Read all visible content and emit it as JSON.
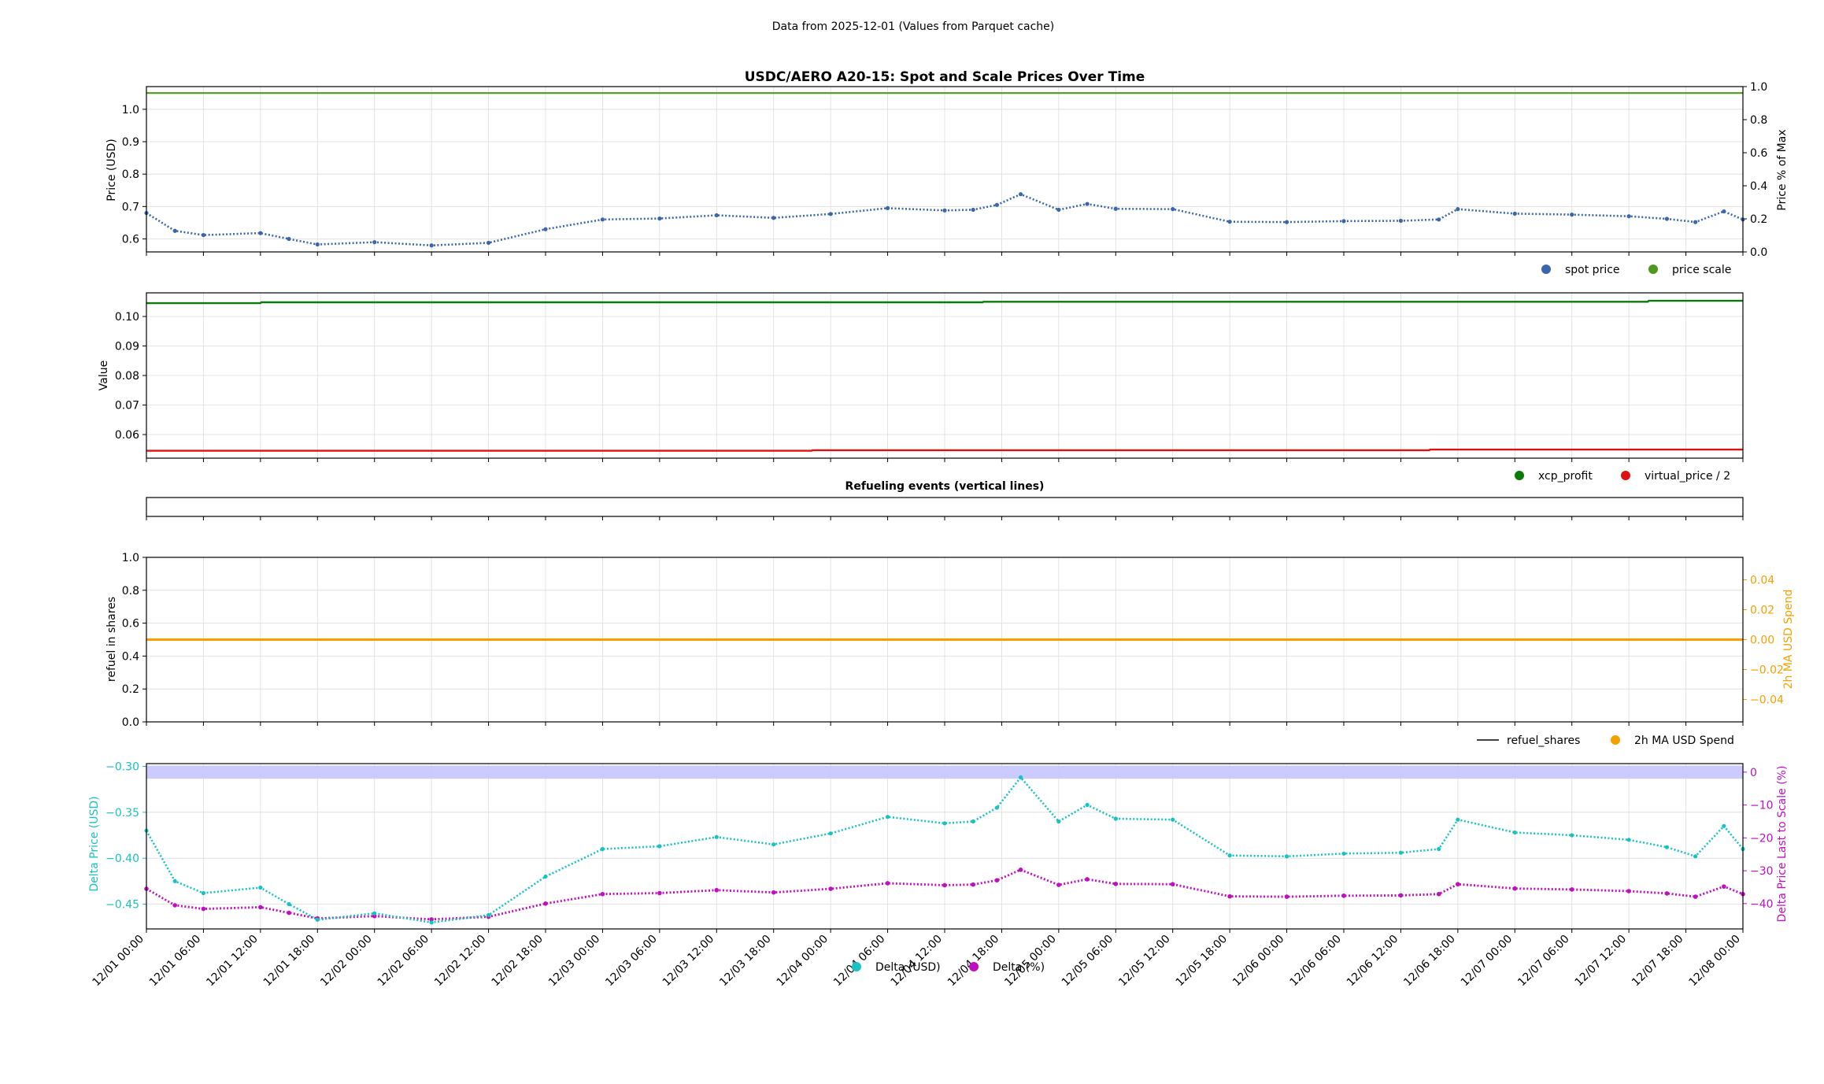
{
  "figure": {
    "suptitle": "Data from 2025-12-01 (Values from Parquet cache)"
  },
  "x_axis": {
    "start": "2025-12-01T00:00",
    "end": "2025-12-08T00:00",
    "tick_labels": [
      "12/01 00:00",
      "12/01 06:00",
      "12/01 12:00",
      "12/01 18:00",
      "12/02 00:00",
      "12/02 06:00",
      "12/02 12:00",
      "12/02 18:00",
      "12/03 00:00",
      "12/03 06:00",
      "12/03 12:00",
      "12/03 18:00",
      "12/04 00:00",
      "12/04 06:00",
      "12/04 12:00",
      "12/04 18:00",
      "12/05 00:00",
      "12/05 06:00",
      "12/05 12:00",
      "12/05 18:00",
      "12/06 00:00",
      "12/06 06:00",
      "12/06 12:00",
      "12/06 18:00",
      "12/07 00:00",
      "12/07 06:00",
      "12/07 12:00",
      "12/07 18:00",
      "12/08 00:00"
    ]
  },
  "colors": {
    "spot": "#3a66ad",
    "scale": "#4f9a1e",
    "xcp": "#0a7a0a",
    "virtual": "#e01010",
    "orange": "#f5a000",
    "cyan": "#19c2c2",
    "magenta": "#bf10bf",
    "band": "#c8c8ff",
    "grid": "#dcdcdc"
  },
  "chart_data": [
    {
      "type": "line",
      "title": "USDC/AERO A20-15: Spot and Scale Prices Over Time",
      "ylabel": "Price (USD)",
      "y2label": "Price % of Max",
      "ylim": [
        0.56,
        1.07
      ],
      "yticks": [
        "0.6",
        "0.7",
        "0.8",
        "0.9",
        "1.0"
      ],
      "y2lim": [
        0.0,
        1.0
      ],
      "y2ticks": [
        "0.0",
        "0.2",
        "0.4",
        "0.6",
        "0.8",
        "1.0"
      ],
      "grid": true,
      "legend_placement": "below-right",
      "series": [
        {
          "name": "spot price",
          "axis": "left",
          "x": [
            "12/01 00:00",
            "12/01 03:00",
            "12/01 06:00",
            "12/01 12:00",
            "12/01 15:00",
            "12/01 18:00",
            "12/02 00:00",
            "12/02 06:00",
            "12/02 12:00",
            "12/02 18:00",
            "12/03 00:00",
            "12/03 06:00",
            "12/03 12:00",
            "12/03 18:00",
            "12/04 00:00",
            "12/04 06:00",
            "12/04 12:00",
            "12/04 15:00",
            "12/04 17:30",
            "12/04 20:00",
            "12/05 00:00",
            "12/05 03:00",
            "12/05 06:00",
            "12/05 12:00",
            "12/05 18:00",
            "12/06 00:00",
            "12/06 06:00",
            "12/06 12:00",
            "12/06 16:00",
            "12/06 18:00",
            "12/07 00:00",
            "12/07 06:00",
            "12/07 12:00",
            "12/07 16:00",
            "12/07 19:00",
            "12/07 22:00",
            "12/08 00:00"
          ],
          "values": [
            0.68,
            0.625,
            0.612,
            0.618,
            0.6,
            0.583,
            0.59,
            0.58,
            0.588,
            0.63,
            0.66,
            0.663,
            0.673,
            0.665,
            0.677,
            0.695,
            0.688,
            0.69,
            0.705,
            0.738,
            0.69,
            0.708,
            0.693,
            0.692,
            0.653,
            0.652,
            0.655,
            0.656,
            0.66,
            0.692,
            0.678,
            0.675,
            0.67,
            0.662,
            0.652,
            0.685,
            0.66
          ]
        },
        {
          "name": "price scale",
          "axis": "left",
          "x": [
            "12/01 00:00",
            "12/08 00:00"
          ],
          "values": [
            1.05,
            1.05
          ]
        }
      ]
    },
    {
      "type": "line",
      "ylabel": "Value",
      "ylim": [
        0.052,
        0.108
      ],
      "yticks": [
        "0.06",
        "0.07",
        "0.08",
        "0.09",
        "0.10"
      ],
      "grid": true,
      "legend_placement": "below-right",
      "series": [
        {
          "name": "xcp_profit",
          "x": [
            "12/01 00:00",
            "12/01 12:00",
            "12/01 12:05",
            "12/04 16:00",
            "12/04 16:05",
            "12/07 14:00",
            "12/07 14:05",
            "12/08 00:00"
          ],
          "values": [
            0.1045,
            0.1045,
            0.1048,
            0.1048,
            0.105,
            0.105,
            0.1053,
            0.1053
          ]
        },
        {
          "name": "virtual_price / 2",
          "x": [
            "12/01 00:00",
            "12/03 22:00",
            "12/03 22:05",
            "12/06 15:00",
            "12/06 15:05",
            "12/08 00:00"
          ],
          "values": [
            0.0545,
            0.0545,
            0.0547,
            0.0547,
            0.0549,
            0.0549
          ]
        }
      ]
    },
    {
      "type": "line",
      "title": "Refueling events (vertical lines)",
      "series": []
    },
    {
      "type": "line",
      "ylabel": "refuel in shares",
      "y2label": "2h MA USD Spend",
      "ylim": [
        0.0,
        1.0
      ],
      "yticks": [
        "0.0",
        "0.2",
        "0.4",
        "0.6",
        "0.8",
        "1.0"
      ],
      "y2lim": [
        -0.055,
        0.055
      ],
      "y2ticks": [
        "−0.04",
        "−0.02",
        "0.00",
        "0.02",
        "0.04"
      ],
      "grid": true,
      "legend_placement": "below-right",
      "series": [
        {
          "name": "refuel_shares",
          "x": [],
          "values": []
        },
        {
          "name": "2h MA USD Spend",
          "axis": "right",
          "x": [
            "12/01 00:00",
            "12/08 00:00"
          ],
          "values": [
            0.0,
            0.0
          ]
        }
      ]
    },
    {
      "type": "scatter",
      "ylabel": "Delta Price (USD)",
      "y2label": "Delta Price Last to Scale (%)",
      "ylim": [
        -0.477,
        -0.297
      ],
      "yticks": [
        "−0.45",
        "−0.40",
        "−0.35",
        "−0.30"
      ],
      "y2lim": [
        -47.7,
        2.6
      ],
      "y2ticks": [
        "−40",
        "−30",
        "−20",
        "−10",
        "0"
      ],
      "band_pct": [
        -2.0,
        2.0
      ],
      "grid": true,
      "legend_placement": "bottom-center",
      "series": [
        {
          "name": "Delta (USD)",
          "axis": "left",
          "x": [
            "12/01 00:00",
            "12/01 03:00",
            "12/01 06:00",
            "12/01 12:00",
            "12/01 15:00",
            "12/01 18:00",
            "12/02 00:00",
            "12/02 06:00",
            "12/02 12:00",
            "12/02 18:00",
            "12/03 00:00",
            "12/03 06:00",
            "12/03 12:00",
            "12/03 18:00",
            "12/04 00:00",
            "12/04 06:00",
            "12/04 12:00",
            "12/04 15:00",
            "12/04 17:30",
            "12/04 20:00",
            "12/05 00:00",
            "12/05 03:00",
            "12/05 06:00",
            "12/05 12:00",
            "12/05 18:00",
            "12/06 00:00",
            "12/06 06:00",
            "12/06 12:00",
            "12/06 16:00",
            "12/06 18:00",
            "12/07 00:00",
            "12/07 06:00",
            "12/07 12:00",
            "12/07 16:00",
            "12/07 19:00",
            "12/07 22:00",
            "12/08 00:00"
          ],
          "values": [
            -0.37,
            -0.425,
            -0.438,
            -0.432,
            -0.45,
            -0.467,
            -0.46,
            -0.47,
            -0.462,
            -0.42,
            -0.39,
            -0.387,
            -0.377,
            -0.385,
            -0.373,
            -0.355,
            -0.362,
            -0.36,
            -0.345,
            -0.312,
            -0.36,
            -0.342,
            -0.357,
            -0.358,
            -0.397,
            -0.398,
            -0.395,
            -0.394,
            -0.39,
            -0.358,
            -0.372,
            -0.375,
            -0.38,
            -0.388,
            -0.398,
            -0.365,
            -0.39
          ]
        },
        {
          "name": "Delta (%)",
          "axis": "right",
          "x": [
            "12/01 00:00",
            "12/01 03:00",
            "12/01 06:00",
            "12/01 12:00",
            "12/01 15:00",
            "12/01 18:00",
            "12/02 00:00",
            "12/02 06:00",
            "12/02 12:00",
            "12/02 18:00",
            "12/03 00:00",
            "12/03 06:00",
            "12/03 12:00",
            "12/03 18:00",
            "12/04 00:00",
            "12/04 06:00",
            "12/04 12:00",
            "12/04 15:00",
            "12/04 17:30",
            "12/04 20:00",
            "12/05 00:00",
            "12/05 03:00",
            "12/05 06:00",
            "12/05 12:00",
            "12/05 18:00",
            "12/06 00:00",
            "12/06 06:00",
            "12/06 12:00",
            "12/06 16:00",
            "12/06 18:00",
            "12/07 00:00",
            "12/07 06:00",
            "12/07 12:00",
            "12/07 16:00",
            "12/07 19:00",
            "12/07 22:00",
            "12/08 00:00"
          ],
          "values": [
            -35.5,
            -40.5,
            -41.6,
            -41.1,
            -42.8,
            -44.5,
            -43.8,
            -44.8,
            -44.0,
            -40.0,
            -37.1,
            -36.8,
            -35.9,
            -36.6,
            -35.5,
            -33.8,
            -34.4,
            -34.2,
            -32.9,
            -29.7,
            -34.3,
            -32.6,
            -34.0,
            -34.1,
            -37.8,
            -37.9,
            -37.6,
            -37.5,
            -37.1,
            -34.1,
            -35.4,
            -35.7,
            -36.2,
            -36.9,
            -37.9,
            -34.8,
            -37.1
          ]
        }
      ]
    }
  ]
}
